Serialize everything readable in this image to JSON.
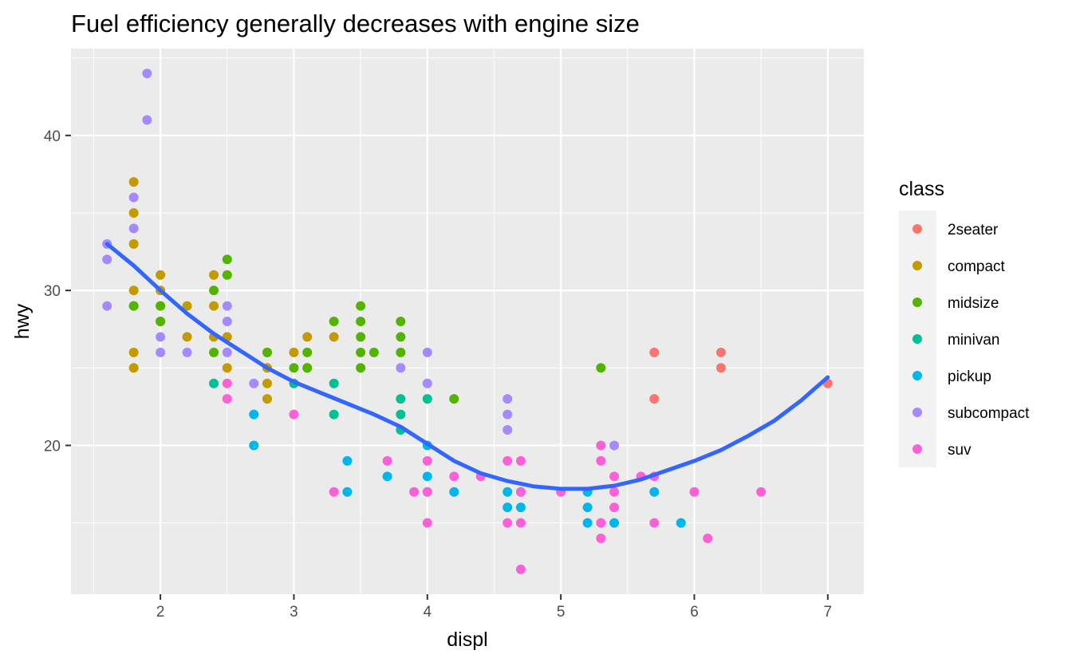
{
  "chart_data": {
    "type": "scatter",
    "title": "Fuel efficiency generally decreases with engine size",
    "xlabel": "displ",
    "ylabel": "hwy",
    "xlim": [
      1.33,
      7.27
    ],
    "ylim": [
      10.4,
      45.6
    ],
    "x_ticks": [
      2,
      3,
      4,
      5,
      6,
      7
    ],
    "y_ticks": [
      20,
      30,
      40
    ],
    "x_tick_labels": [
      "2",
      "3",
      "4",
      "5",
      "6",
      "7"
    ],
    "y_tick_labels": [
      "20",
      "30",
      "40"
    ],
    "grid": true,
    "legend": {
      "title": "class",
      "position": "right",
      "entries": [
        "2seater",
        "compact",
        "midsize",
        "minivan",
        "pickup",
        "subcompact",
        "suv"
      ]
    },
    "colors": {
      "2seater": "#F8766D",
      "compact": "#C49A00",
      "midsize": "#53B400",
      "minivan": "#00C094",
      "pickup": "#00B6EB",
      "subcompact": "#A58AFF",
      "suv": "#FB61D7",
      "panel": "#EBEBEB",
      "smooth_line": "#3366FF"
    },
    "series": [
      {
        "name": "2seater",
        "x": [
          5.7,
          5.7,
          6.2,
          6.2,
          7.0
        ],
        "y": [
          26,
          23,
          26,
          25,
          24
        ]
      },
      {
        "name": "compact",
        "x": [
          1.8,
          1.8,
          1.8,
          1.8,
          1.8,
          1.8,
          1.8,
          2.0,
          2.0,
          2.0,
          2.0,
          2.2,
          2.2,
          2.4,
          2.4,
          2.4,
          2.5,
          2.5,
          2.8,
          2.8,
          2.8,
          2.8,
          3.0,
          3.1,
          3.1,
          3.3
        ],
        "y": [
          37,
          35,
          33,
          30,
          29,
          26,
          25,
          31,
          30,
          29,
          28,
          29,
          27,
          31,
          29,
          27,
          27,
          25,
          26,
          25,
          24,
          23,
          26,
          27,
          25,
          27
        ]
      },
      {
        "name": "midsize",
        "x": [
          1.8,
          2.0,
          2.0,
          2.4,
          2.4,
          2.5,
          2.5,
          2.8,
          3.0,
          3.1,
          3.1,
          3.3,
          3.5,
          3.5,
          3.5,
          3.5,
          3.5,
          3.6,
          3.8,
          3.8,
          3.8,
          4.2,
          5.3
        ],
        "y": [
          29,
          29,
          28,
          30,
          26,
          32,
          31,
          26,
          25,
          26,
          25,
          28,
          29,
          28,
          27,
          26,
          25,
          26,
          28,
          27,
          26,
          23,
          25
        ]
      },
      {
        "name": "minivan",
        "x": [
          2.4,
          3.0,
          3.3,
          3.3,
          3.8,
          3.8,
          3.8,
          4.0
        ],
        "y": [
          24,
          24,
          24,
          22,
          23,
          22,
          21,
          23
        ]
      },
      {
        "name": "pickup",
        "x": [
          2.7,
          2.7,
          3.4,
          3.4,
          3.7,
          4.0,
          4.0,
          4.0,
          4.2,
          4.6,
          4.6,
          4.7,
          4.7,
          5.2,
          5.2,
          5.2,
          5.4,
          5.7,
          5.9
        ],
        "y": [
          22,
          20,
          19,
          17,
          18,
          20,
          18,
          17,
          17,
          17,
          16,
          17,
          16,
          17,
          16,
          15,
          15,
          17,
          15
        ]
      },
      {
        "name": "subcompact",
        "x": [
          1.6,
          1.6,
          1.6,
          1.8,
          1.8,
          1.9,
          1.9,
          2.0,
          2.0,
          2.2,
          2.5,
          2.5,
          2.5,
          2.7,
          3.8,
          4.0,
          4.0,
          4.6,
          4.6,
          4.6,
          5.4
        ],
        "y": [
          33,
          32,
          29,
          36,
          34,
          44,
          41,
          27,
          26,
          26,
          29,
          28,
          26,
          24,
          25,
          26,
          24,
          23,
          22,
          21,
          20
        ]
      },
      {
        "name": "suv",
        "x": [
          2.5,
          2.5,
          3.0,
          3.3,
          3.7,
          3.9,
          4.0,
          4.0,
          4.0,
          4.2,
          4.4,
          4.6,
          4.6,
          4.7,
          4.7,
          4.7,
          4.7,
          5.0,
          5.3,
          5.3,
          5.3,
          5.3,
          5.4,
          5.4,
          5.4,
          5.6,
          5.7,
          5.7,
          6.0,
          6.1,
          6.5
        ],
        "y": [
          24,
          23,
          22,
          17,
          19,
          17,
          19,
          17,
          15,
          18,
          18,
          19,
          15,
          19,
          17,
          15,
          12,
          17,
          20,
          19,
          15,
          14,
          18,
          17,
          16,
          18,
          18,
          15,
          17,
          14,
          17
        ]
      }
    ],
    "smooth": {
      "x": [
        1.6,
        1.8,
        2.0,
        2.2,
        2.4,
        2.6,
        2.8,
        3.0,
        3.2,
        3.4,
        3.6,
        3.8,
        4.0,
        4.2,
        4.4,
        4.6,
        4.8,
        5.0,
        5.2,
        5.4,
        5.6,
        5.8,
        6.0,
        6.2,
        6.4,
        6.6,
        6.8,
        7.0
      ],
      "y": [
        33.0,
        31.6,
        30.0,
        28.5,
        27.2,
        26.1,
        25.0,
        24.1,
        23.4,
        22.7,
        22.0,
        21.2,
        20.1,
        19.0,
        18.2,
        17.7,
        17.35,
        17.2,
        17.2,
        17.4,
        17.8,
        18.4,
        19.0,
        19.7,
        20.6,
        21.6,
        22.9,
        24.4
      ]
    }
  }
}
